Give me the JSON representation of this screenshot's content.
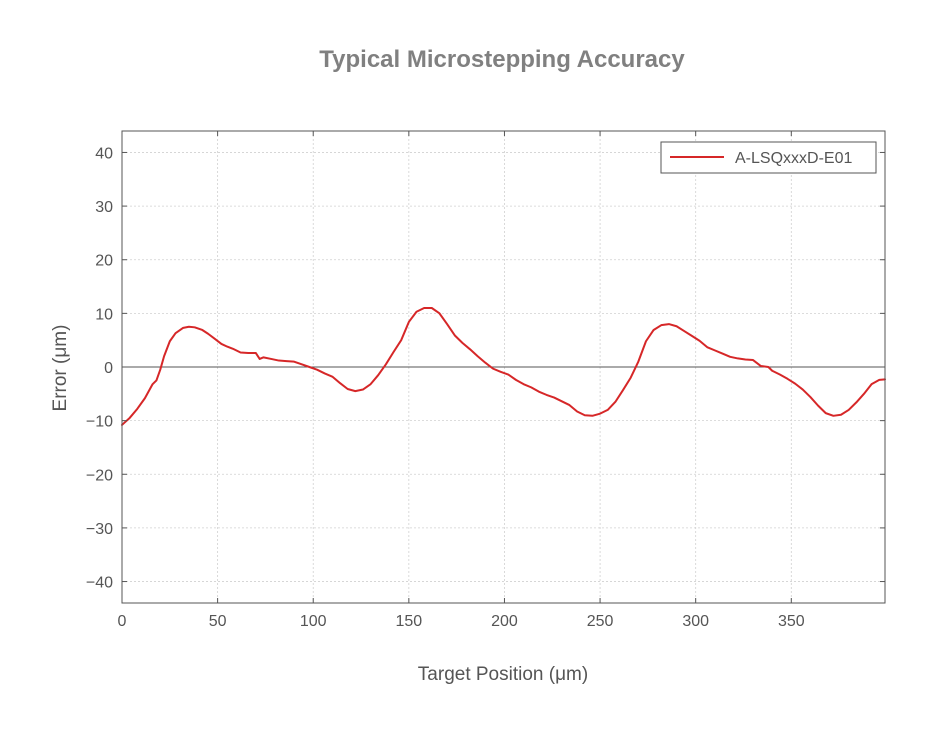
{
  "chart_data": {
    "type": "line",
    "title": "Typical Microstepping Accuracy",
    "xlabel": "Target Position (μm)",
    "ylabel": "Error (μm)",
    "xlim": [
      0,
      399
    ],
    "ylim": [
      -44,
      44
    ],
    "x_ticks": [
      0,
      50,
      100,
      150,
      200,
      250,
      300,
      350
    ],
    "y_ticks": [
      -40,
      -30,
      -20,
      -10,
      0,
      10,
      20,
      30,
      40
    ],
    "x_tick_labels": [
      "0",
      "50",
      "100",
      "150",
      "200",
      "250",
      "300",
      "350"
    ],
    "y_tick_labels": [
      "−40",
      "−30",
      "−20",
      "−10",
      "0",
      "10",
      "20",
      "30",
      "40"
    ],
    "grid": true,
    "zero_line": true,
    "legend_position": "top-right",
    "series": [
      {
        "name": "A-LSQxxxD-E01",
        "color": "#d62728",
        "x": [
          0,
          4,
          8,
          12,
          16,
          18,
          20,
          22,
          25,
          28,
          32,
          35,
          38,
          42,
          45,
          48,
          52,
          55,
          58,
          62,
          66,
          70,
          72,
          74,
          78,
          82,
          86,
          90,
          94,
          98,
          102,
          106,
          110,
          114,
          118,
          122,
          126,
          130,
          134,
          138,
          142,
          146,
          150,
          154,
          158,
          162,
          166,
          170,
          174,
          178,
          182,
          186,
          190,
          194,
          198,
          202,
          206,
          210,
          214,
          218,
          222,
          226,
          230,
          234,
          238,
          242,
          246,
          250,
          254,
          258,
          262,
          266,
          270,
          274,
          278,
          282,
          286,
          290,
          294,
          298,
          302,
          306,
          310,
          314,
          318,
          322,
          326,
          330,
          334,
          338,
          340,
          344,
          348,
          352,
          356,
          360,
          364,
          368,
          372,
          376,
          380,
          384,
          388,
          392,
          396,
          399
        ],
        "y": [
          -10.8,
          -9.5,
          -7.8,
          -5.8,
          -3.2,
          -2.5,
          -0.5,
          2.0,
          4.8,
          6.3,
          7.3,
          7.5,
          7.4,
          6.9,
          6.2,
          5.4,
          4.3,
          3.8,
          3.4,
          2.7,
          2.6,
          2.6,
          1.5,
          1.8,
          1.5,
          1.2,
          1.1,
          1.0,
          0.5,
          0.0,
          -0.5,
          -1.2,
          -1.8,
          -3.0,
          -4.1,
          -4.5,
          -4.2,
          -3.2,
          -1.5,
          0.5,
          2.8,
          5.0,
          8.4,
          10.3,
          11.0,
          11.0,
          10.0,
          8.0,
          5.9,
          4.5,
          3.3,
          2.0,
          0.8,
          -0.3,
          -0.9,
          -1.4,
          -2.4,
          -3.2,
          -3.8,
          -4.6,
          -5.2,
          -5.7,
          -6.4,
          -7.1,
          -8.3,
          -9.0,
          -9.1,
          -8.7,
          -8.0,
          -6.5,
          -4.3,
          -2.0,
          1.0,
          4.8,
          6.9,
          7.8,
          8.0,
          7.6,
          6.7,
          5.8,
          4.9,
          3.7,
          3.1,
          2.5,
          1.9,
          1.6,
          1.4,
          1.3,
          0.2,
          0.0,
          -0.7,
          -1.4,
          -2.2,
          -3.1,
          -4.2,
          -5.6,
          -7.2,
          -8.6,
          -9.1,
          -8.9,
          -8.0,
          -6.6,
          -5.0,
          -3.2,
          -2.4,
          -2.3
        ]
      }
    ]
  }
}
